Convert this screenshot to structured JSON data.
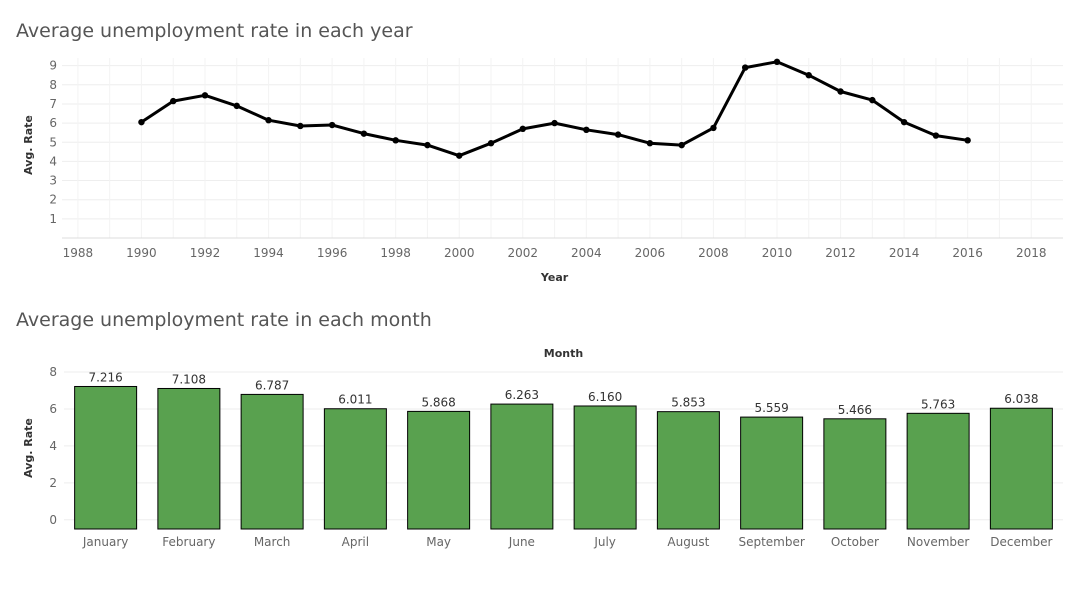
{
  "chart_data": [
    {
      "type": "line",
      "title": "Average unemployment rate in each year",
      "xlabel": "Year",
      "ylabel": "Avg. Rate",
      "xlim": [
        1987.5,
        2019
      ],
      "ylim": [
        0,
        9.4
      ],
      "xticks": [
        1988,
        1990,
        1992,
        1994,
        1996,
        1998,
        2000,
        2002,
        2004,
        2006,
        2008,
        2010,
        2012,
        2014,
        2016,
        2018
      ],
      "yticks": [
        1,
        2,
        3,
        4,
        5,
        6,
        7,
        8,
        9
      ],
      "grid": true,
      "color": "#000000",
      "x": [
        1990,
        1991,
        1992,
        1993,
        1994,
        1995,
        1996,
        1997,
        1998,
        1999,
        2000,
        2001,
        2002,
        2003,
        2004,
        2005,
        2006,
        2007,
        2008,
        2009,
        2010,
        2011,
        2012,
        2013,
        2014,
        2015,
        2016
      ],
      "y": [
        6.05,
        7.15,
        7.45,
        6.9,
        6.15,
        5.85,
        5.9,
        5.45,
        5.1,
        4.85,
        4.3,
        4.95,
        5.7,
        6.0,
        5.65,
        5.4,
        4.95,
        4.85,
        5.75,
        8.9,
        9.2,
        8.5,
        7.65,
        7.2,
        6.05,
        5.35,
        5.1
      ]
    },
    {
      "type": "bar",
      "title": "Average unemployment rate in each month",
      "xlabel": "Month",
      "xlabel_position": "top",
      "ylabel": "Avg. Rate",
      "ylim": [
        -0.5,
        8
      ],
      "yticks": [
        0,
        2,
        4,
        6,
        8
      ],
      "grid": true,
      "color": "#59a14f",
      "categories": [
        "January",
        "February",
        "March",
        "April",
        "May",
        "June",
        "July",
        "August",
        "September",
        "October",
        "November",
        "December"
      ],
      "values": [
        7.216,
        7.108,
        6.787,
        6.011,
        5.868,
        6.263,
        6.16,
        5.853,
        5.559,
        5.466,
        5.763,
        6.038
      ],
      "data_labels": [
        "7.216",
        "7.108",
        "6.787",
        "6.011",
        "5.868",
        "6.263",
        "6.160",
        "5.853",
        "5.559",
        "5.466",
        "5.763",
        "6.038"
      ]
    }
  ]
}
